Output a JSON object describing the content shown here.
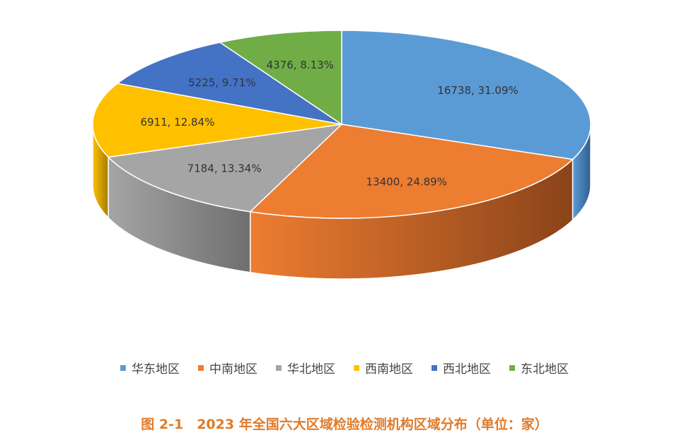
{
  "chart_data": {
    "type": "pie",
    "style": "3d",
    "title": "",
    "caption": "图 2-1　2023 年全国六大区域检验检测机构区域分布（单位：家）",
    "legend_position": "bottom",
    "slices": [
      {
        "name": "华东地区",
        "value": 16738,
        "percent": "31.09%",
        "label": "16738, 31.09%",
        "color": "#5b9bd5",
        "side_color": "#2f5f8f"
      },
      {
        "name": "中南地区",
        "value": 13400,
        "percent": "24.89%",
        "label": "13400, 24.89%",
        "color": "#ed7d31",
        "side_color": "#8a4319"
      },
      {
        "name": "华北地区",
        "value": 7184,
        "percent": "13.34%",
        "label": "7184, 13.34%",
        "color": "#a5a5a5",
        "side_color": "#6f6f6f"
      },
      {
        "name": "西南地区",
        "value": 6911,
        "percent": "12.84%",
        "label": "6911, 12.84%",
        "color": "#ffc000",
        "side_color": "#a67c00"
      },
      {
        "name": "西北地区",
        "value": 5225,
        "percent": "9.71%",
        "label": "5225, 9.71%",
        "color": "#4472c4",
        "side_color": "#26457d"
      },
      {
        "name": "东北地区",
        "value": 4376,
        "percent": "8.13%",
        "label": "4376, 8.13%",
        "color": "#70ad47",
        "side_color": "#456b2b"
      }
    ]
  }
}
